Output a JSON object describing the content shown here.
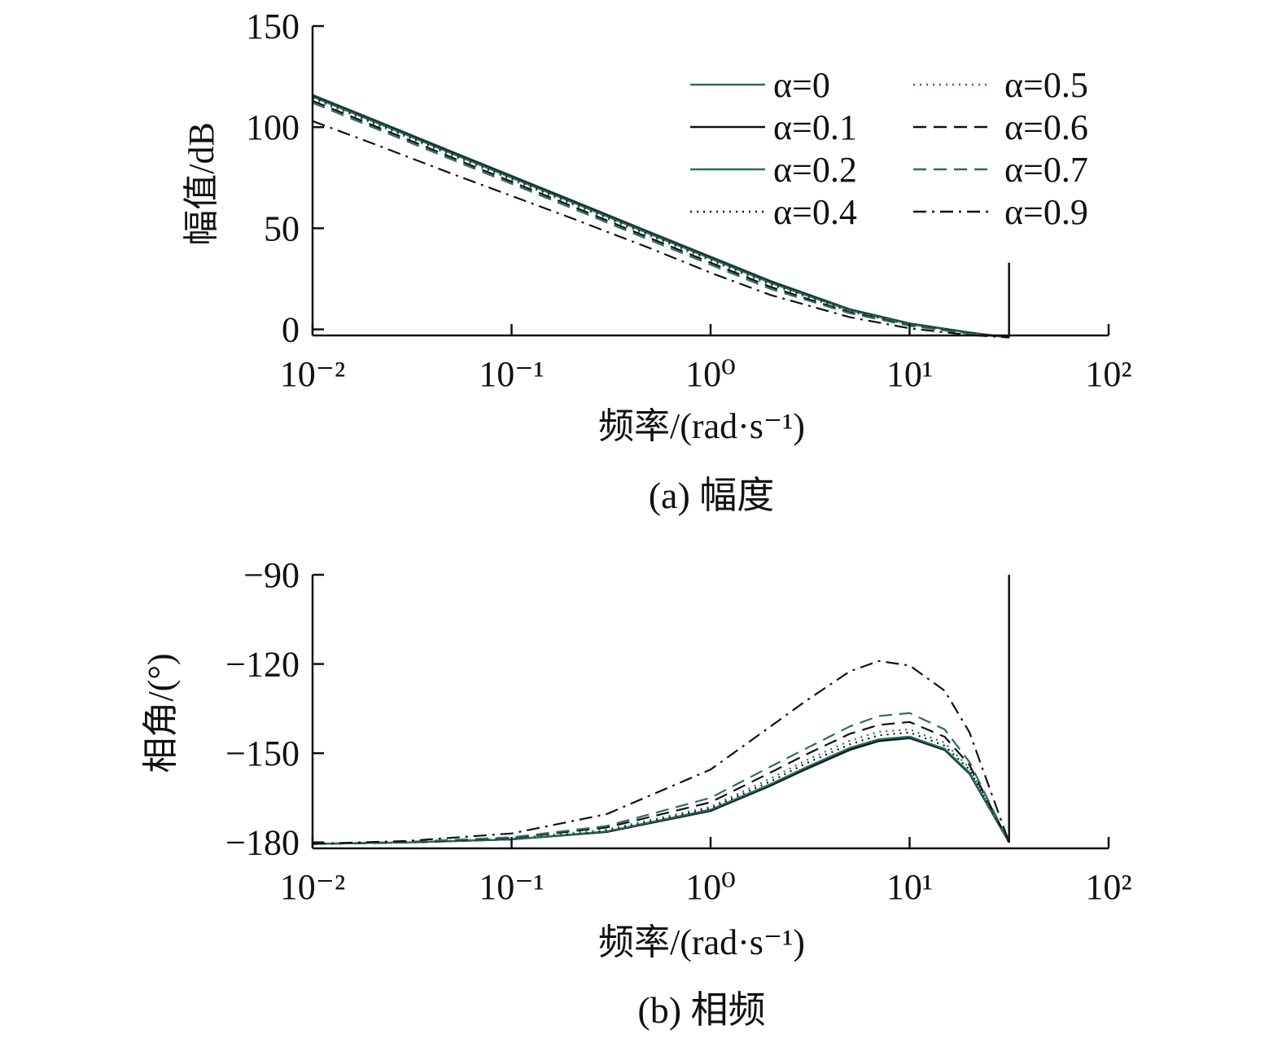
{
  "chart_data": [
    {
      "type": "line",
      "caption": "(a) 幅度",
      "xlabel": "频率/(rad·s⁻¹)",
      "ylabel": "幅值/dB",
      "x_scale": "log",
      "xlim": [
        0.01,
        100
      ],
      "ylim": [
        -3,
        150
      ],
      "x_tick_labels": [
        "10⁻²",
        "10⁻¹",
        "10⁰",
        "10¹",
        "10²"
      ],
      "y_ticks": [
        0,
        50,
        100,
        150
      ],
      "grid": false,
      "legend_position": "top-right",
      "x": [
        0.01,
        0.02,
        0.05,
        0.1,
        0.2,
        0.5,
        1,
        2,
        5,
        10,
        20,
        31.6
      ],
      "series": [
        {
          "name": "α=0",
          "color": "#2e6b62",
          "dash": "solid",
          "values": [
            116,
            104,
            88,
            76,
            64,
            48,
            36,
            24,
            10,
            3,
            -1.5,
            -4
          ]
        },
        {
          "name": "α=0.1",
          "color": "#111111",
          "dash": "solid",
          "values": [
            115.5,
            103.5,
            87.5,
            75.5,
            63.5,
            47.5,
            35.5,
            23.5,
            9.7,
            2.8,
            -1.6,
            -4
          ]
        },
        {
          "name": "α=0.2",
          "color": "#2e6b62",
          "dash": "solid",
          "values": [
            115,
            103,
            87,
            75,
            63,
            47,
            35,
            23,
            9.4,
            2.6,
            -1.7,
            -4
          ]
        },
        {
          "name": "α=0.4",
          "color": "#111111",
          "dash": "dotted",
          "values": [
            114.5,
            102.5,
            86.5,
            74.5,
            62.5,
            46.5,
            34.5,
            22.5,
            9.1,
            2.4,
            -1.8,
            -4
          ]
        },
        {
          "name": "α=0.5",
          "color": "#2e6b62",
          "dash": "dotted",
          "values": [
            114,
            102,
            86,
            74,
            62,
            46,
            34,
            22,
            8.8,
            2.2,
            -1.9,
            -4
          ]
        },
        {
          "name": "α=0.6",
          "color": "#111111",
          "dash": "dashed",
          "values": [
            113,
            101,
            85,
            73,
            61,
            45,
            33,
            21,
            8.4,
            2,
            -2,
            -4
          ]
        },
        {
          "name": "α=0.7",
          "color": "#2e6b62",
          "dash": "dashed",
          "values": [
            112,
            100,
            84,
            72,
            60,
            44,
            32,
            20,
            8,
            1.8,
            -2.2,
            -4
          ]
        },
        {
          "name": "α=0.9",
          "color": "#111111",
          "dash": "dash-dot",
          "values": [
            103,
            92,
            77,
            66,
            55,
            40,
            28,
            17,
            6,
            0.5,
            -2.8,
            -4
          ]
        }
      ],
      "cutoff_line": {
        "x": 31.6,
        "y_top": 33,
        "y_bottom": -4
      }
    },
    {
      "type": "line",
      "caption": "(b) 相频",
      "xlabel": "频率/(rad·s⁻¹)",
      "ylabel": "相角/(°)",
      "x_scale": "log",
      "xlim": [
        0.01,
        100
      ],
      "ylim": [
        -182,
        -90
      ],
      "x_tick_labels": [
        "10⁻²",
        "10⁻¹",
        "10⁰",
        "10¹",
        "10²"
      ],
      "y_ticks": [
        -90,
        -120,
        -150,
        -180
      ],
      "y_tick_labels": [
        "−90",
        "−120",
        "−150",
        "−180"
      ],
      "grid": false,
      "x": [
        0.01,
        0.03,
        0.1,
        0.3,
        1,
        2,
        3,
        5,
        7,
        10,
        15,
        20,
        31.6
      ],
      "series": [
        {
          "name": "α=0",
          "values": [
            -180.5,
            -180,
            -179,
            -176.5,
            -169.5,
            -161,
            -155.5,
            -149,
            -146,
            -145,
            -149,
            -157,
            -180
          ]
        },
        {
          "name": "α=0.1",
          "values": [
            -180.5,
            -180,
            -179,
            -176.5,
            -169.3,
            -160.8,
            -155.3,
            -148.8,
            -145.8,
            -144.8,
            -148.8,
            -156.8,
            -180
          ]
        },
        {
          "name": "α=0.2",
          "values": [
            -180.5,
            -180,
            -179,
            -176.3,
            -169,
            -160.4,
            -154.8,
            -148.2,
            -145.3,
            -144.4,
            -148.5,
            -156.5,
            -180
          ]
        },
        {
          "name": "α=0.4",
          "values": [
            -180.5,
            -180,
            -178.8,
            -176,
            -168.5,
            -159.5,
            -153.5,
            -147,
            -144,
            -143,
            -147.5,
            -155.5,
            -180
          ]
        },
        {
          "name": "α=0.5",
          "values": [
            -180.5,
            -180,
            -178.7,
            -175.7,
            -168,
            -158.5,
            -152.5,
            -145.8,
            -142.8,
            -142,
            -146.5,
            -155,
            -180
          ]
        },
        {
          "name": "α=0.6",
          "values": [
            -180.5,
            -180,
            -178.5,
            -175,
            -166.5,
            -156.5,
            -150.5,
            -143.5,
            -140.5,
            -139.5,
            -144.5,
            -154,
            -180
          ]
        },
        {
          "name": "α=0.7",
          "values": [
            -180.5,
            -179.8,
            -178.3,
            -174.5,
            -165,
            -154.5,
            -148.5,
            -141,
            -137.5,
            -136.5,
            -142,
            -153,
            -180
          ]
        },
        {
          "name": "α=0.9",
          "values": [
            -180.5,
            -179.5,
            -177,
            -170.5,
            -155.5,
            -141,
            -132.5,
            -122.5,
            -119,
            -120.5,
            -129,
            -143,
            -180
          ]
        }
      ],
      "cutoff_line": {
        "x": 31.6,
        "y_top": -90,
        "y_bottom": -180
      }
    }
  ]
}
